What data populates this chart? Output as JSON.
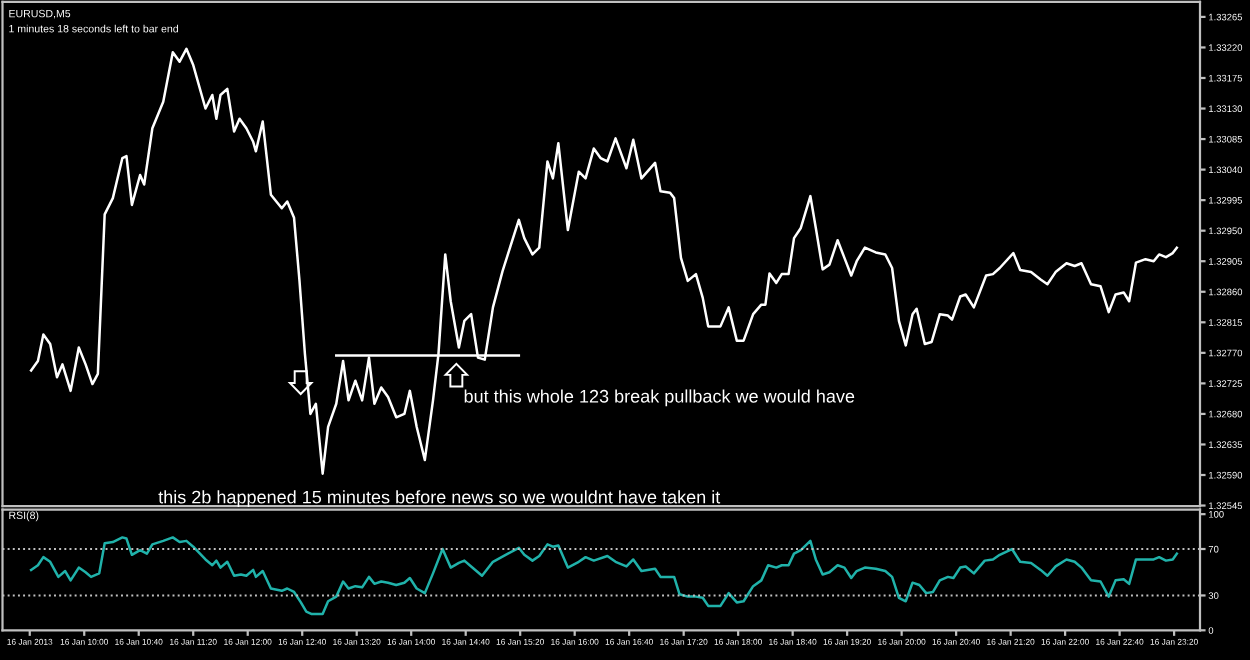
{
  "chart_data": [
    {
      "type": "line",
      "title": "EURUSD,M5",
      "subtitle": "1 minutes 18 seconds left to bar end",
      "annotations": [
        "but this whole 123 break pullback we would have",
        "this 2b happened 15 minutes before news so we wouldnt have taken it"
      ],
      "xlim": [
        "2013-01-16T09:00",
        "2013-01-16T23:39"
      ],
      "ylim": [
        1.32544,
        1.33287
      ],
      "yticks": [
        1.33265,
        {
          "value": 1.3322,
          "label": "1.33220"
        },
        1.33175,
        {
          "value": 1.3313,
          "label": "1.33130"
        },
        1.33085,
        {
          "value": 1.3304,
          "label": "1.33040"
        },
        1.32995,
        {
          "value": 1.3295,
          "label": "1.32950"
        },
        1.32905,
        {
          "value": 1.3286,
          "label": "1.32860"
        },
        1.32815,
        {
          "value": 1.3277,
          "label": "1.32770"
        },
        1.32725,
        {
          "value": 1.3268,
          "label": "1.32680"
        },
        1.32635,
        {
          "value": 1.3259,
          "label": "1.32590"
        },
        1.32545
      ],
      "tick_labels": "y",
      "grid": false,
      "series": [
        {
          "color": "#ffffff",
          "x": [
            "2013-01-16T09:21",
            "2013-01-16T09:26",
            "2013-01-16T09:30",
            "2013-01-16T09:35",
            "2013-01-16T09:40",
            "2013-01-16T09:44",
            "2013-01-16T09:50",
            "2013-01-16T09:56",
            "2013-01-16T10:01",
            "2013-01-16T10:06",
            "2013-01-16T10:10",
            "2013-01-16T10:15",
            "2013-01-16T10:21",
            "2013-01-16T10:28",
            "2013-01-16T10:31",
            "2013-01-16T10:35",
            "2013-01-16T10:41",
            "2013-01-16T10:44",
            "2013-01-16T10:50",
            "2013-01-16T10:58",
            "2013-01-16T11:05",
            "2013-01-16T11:10",
            "2013-01-16T11:15",
            "2013-01-16T11:20",
            "2013-01-16T11:29",
            "2013-01-16T11:34",
            "2013-01-16T11:37",
            "2013-01-16T11:40",
            "2013-01-16T11:45",
            "2013-01-16T11:50",
            "2013-01-16T11:54",
            "2013-01-16T11:59",
            "2013-01-16T12:04",
            "2013-01-16T12:06",
            "2013-01-16T12:11",
            "2013-01-16T12:17",
            "2013-01-16T12:25",
            "2013-01-16T12:29",
            "2013-01-16T12:34",
            "2013-01-16T12:38",
            "2013-01-16T12:42",
            "2013-01-16T12:46",
            "2013-01-16T12:50",
            "2013-01-16T12:55",
            "2013-01-16T12:59",
            "2013-01-16T13:05",
            "2013-01-16T13:10",
            "2013-01-16T13:14",
            "2013-01-16T13:19",
            "2013-01-16T13:24",
            "2013-01-16T13:29",
            "2013-01-16T13:33",
            "2013-01-16T13:38",
            "2013-01-16T13:43",
            "2013-01-16T13:49",
            "2013-01-16T13:55",
            "2013-01-16T13:59",
            "2013-01-16T14:04",
            "2013-01-16T14:10",
            "2013-01-16T14:16",
            "2013-01-16T14:20",
            "2013-01-16T14:25",
            "2013-01-16T14:29",
            "2013-01-16T14:35",
            "2013-01-16T14:39",
            "2013-01-16T14:44",
            "2013-01-16T14:49",
            "2013-01-16T14:54",
            "2013-01-16T15:00",
            "2013-01-16T15:07",
            "2013-01-16T15:19",
            "2013-01-16T15:23",
            "2013-01-16T15:29",
            "2013-01-16T15:34",
            "2013-01-16T15:40",
            "2013-01-16T15:44",
            "2013-01-16T15:48",
            "2013-01-16T15:55",
            "2013-01-16T16:03",
            "2013-01-16T16:08",
            "2013-01-16T16:14",
            "2013-01-16T16:19",
            "2013-01-16T16:24",
            "2013-01-16T16:30",
            "2013-01-16T16:38",
            "2013-01-16T16:43",
            "2013-01-16T16:49",
            "2013-01-16T16:59",
            "2013-01-16T17:03",
            "2013-01-16T17:10",
            "2013-01-16T17:13",
            "2013-01-16T17:18",
            "2013-01-16T17:23",
            "2013-01-16T17:29",
            "2013-01-16T17:34",
            "2013-01-16T17:38",
            "2013-01-16T17:47",
            "2013-01-16T17:53",
            "2013-01-16T17:59",
            "2013-01-16T18:04",
            "2013-01-16T18:11",
            "2013-01-16T18:17",
            "2013-01-16T18:20",
            "2013-01-16T18:23",
            "2013-01-16T18:28",
            "2013-01-16T18:32",
            "2013-01-16T18:37",
            "2013-01-16T18:41",
            "2013-01-16T18:46",
            "2013-01-16T18:53",
            "2013-01-16T18:57",
            "2013-01-16T19:02",
            "2013-01-16T19:07",
            "2013-01-16T19:13",
            "2013-01-16T19:18",
            "2013-01-16T19:23",
            "2013-01-16T19:27",
            "2013-01-16T19:33",
            "2013-01-16T19:41",
            "2013-01-16T19:48",
            "2013-01-16T19:53",
            "2013-01-16T19:58",
            "2013-01-16T20:03",
            "2013-01-16T20:08",
            "2013-01-16T20:11",
            "2013-01-16T20:17",
            "2013-01-16T20:22",
            "2013-01-16T20:28",
            "2013-01-16T20:34",
            "2013-01-16T20:37",
            "2013-01-16T20:43",
            "2013-01-16T20:47",
            "2013-01-16T20:53",
            "2013-01-16T21:02",
            "2013-01-16T21:07",
            "2013-01-16T21:12",
            "2013-01-16T21:22",
            "2013-01-16T21:27",
            "2013-01-16T21:35",
            "2013-01-16T21:42",
            "2013-01-16T21:47",
            "2013-01-16T21:53",
            "2013-01-16T22:01",
            "2013-01-16T22:07",
            "2013-01-16T22:12",
            "2013-01-16T22:19",
            "2013-01-16T22:26",
            "2013-01-16T22:32",
            "2013-01-16T22:37",
            "2013-01-16T22:43",
            "2013-01-16T22:47",
            "2013-01-16T22:52",
            "2013-01-16T22:59",
            "2013-01-16T23:05",
            "2013-01-16T23:09",
            "2013-01-16T23:14",
            "2013-01-16T23:19",
            "2013-01-16T23:22"
          ],
          "values": [
            1.32744,
            1.32758,
            1.32797,
            1.32783,
            1.32734,
            1.32753,
            1.32714,
            1.32778,
            1.32753,
            1.32724,
            1.32739,
            1.32974,
            1.32998,
            1.33057,
            1.3306,
            1.32988,
            1.33032,
            1.33018,
            1.33101,
            1.3314,
            1.33213,
            1.33199,
            1.33218,
            1.33194,
            1.3313,
            1.3315,
            1.33115,
            1.3315,
            1.33159,
            1.33096,
            1.33115,
            1.33101,
            1.33081,
            1.33067,
            1.33111,
            1.33003,
            1.32983,
            1.32993,
            1.32969,
            1.32876,
            1.32768,
            1.3268,
            1.32695,
            1.32592,
            1.32661,
            1.32695,
            1.32758,
            1.327,
            1.32729,
            1.327,
            1.32763,
            1.32695,
            1.32719,
            1.32705,
            1.32675,
            1.3268,
            1.32714,
            1.32661,
            1.32612,
            1.327,
            1.32768,
            1.32915,
            1.32846,
            1.32778,
            1.32817,
            1.32827,
            1.32763,
            1.3276,
            1.32837,
            1.3289,
            1.32966,
            1.32939,
            1.32915,
            1.32925,
            1.33052,
            1.33027,
            1.33079,
            1.32951,
            1.33037,
            1.33027,
            1.33071,
            1.33057,
            1.33052,
            1.33086,
            1.33042,
            1.33084,
            1.33027,
            1.3305,
            1.33008,
            1.33006,
            1.32998,
            1.3291,
            1.32876,
            1.32886,
            1.32851,
            1.32809,
            1.32809,
            1.32837,
            1.32788,
            1.32788,
            1.32827,
            1.32841,
            1.32841,
            1.32887,
            1.32873,
            1.32886,
            1.32886,
            1.32939,
            1.32954,
            1.33001,
            1.32954,
            1.32893,
            1.329,
            1.32936,
            1.3291,
            1.32884,
            1.32905,
            1.32925,
            1.32918,
            1.32915,
            1.32895,
            1.32817,
            1.32781,
            1.32827,
            1.32835,
            1.32783,
            1.32786,
            1.32827,
            1.32825,
            1.32819,
            1.32853,
            1.32856,
            1.32837,
            1.32884,
            1.32886,
            1.32895,
            1.32917,
            1.32892,
            1.32889,
            1.32878,
            1.32871,
            1.32889,
            1.32902,
            1.32898,
            1.32902,
            1.32871,
            1.32868,
            1.3283,
            1.32856,
            1.32859,
            1.32846,
            1.32903,
            1.32908,
            1.32905,
            1.32915,
            1.32911,
            1.32917,
            1.32925
          ]
        },
        {
          "type": "line",
          "color": "#ffffff",
          "x": [
            "2013-01-16T13:05",
            "2013-01-16T15:19"
          ],
          "values": [
            1.32766,
            1.32766
          ]
        }
      ]
    },
    {
      "type": "line",
      "title": "RSI(8)",
      "xlim": [
        "2013-01-16T09:00",
        "2013-01-16T23:39"
      ],
      "ylim": [
        0,
        104
      ],
      "yticks": [
        0,
        30,
        70,
        100
      ],
      "grid": false,
      "xticks": [
        {
          "value": "2013-01-16T09:20",
          "label": "16 Jan 2013"
        },
        {
          "value": "2013-01-16T10:00",
          "label": "16 Jan 10:00"
        },
        {
          "value": "2013-01-16T10:40",
          "label": "16 Jan 10:40"
        },
        {
          "value": "2013-01-16T11:20",
          "label": "16 Jan 11:20"
        },
        {
          "value": "2013-01-16T12:00",
          "label": "16 Jan 12:00"
        },
        {
          "value": "2013-01-16T12:40",
          "label": "16 Jan 12:40"
        },
        {
          "value": "2013-01-16T13:20",
          "label": "16 Jan 13:20"
        },
        {
          "value": "2013-01-16T14:00",
          "label": "16 Jan 14:00"
        },
        {
          "value": "2013-01-16T14:40",
          "label": "16 Jan 14:40"
        },
        {
          "value": "2013-01-16T15:20",
          "label": "16 Jan 15:20"
        },
        {
          "value": "2013-01-16T16:00",
          "label": "16 Jan 16:00"
        },
        {
          "value": "2013-01-16T16:40",
          "label": "16 Jan 16:40"
        },
        {
          "value": "2013-01-16T17:20",
          "label": "16 Jan 17:20"
        },
        {
          "value": "2013-01-16T18:00",
          "label": "16 Jan 18:00"
        },
        {
          "value": "2013-01-16T18:40",
          "label": "16 Jan 18:40"
        },
        {
          "value": "2013-01-16T19:20",
          "label": "16 Jan 19:20"
        },
        {
          "value": "2013-01-16T20:00",
          "label": "16 Jan 20:00"
        },
        {
          "value": "2013-01-16T20:40",
          "label": "16 Jan 20:40"
        },
        {
          "value": "2013-01-16T21:20",
          "label": "16 Jan 21:20"
        },
        {
          "value": "2013-01-16T22:00",
          "label": "16 Jan 22:00"
        },
        {
          "value": "2013-01-16T22:40",
          "label": "16 Jan 22:40"
        },
        {
          "value": "2013-01-16T23:20",
          "label": "16 Jan 23:20"
        }
      ],
      "ref_lines": [
        {
          "axis": "y",
          "value": 70,
          "color": "#c0c0c0",
          "line_style": "dotted"
        },
        {
          "axis": "y",
          "value": 30,
          "color": "#c0c0c0",
          "line_style": "dotted"
        }
      ],
      "series": [
        {
          "color": "#20b2aa",
          "x": [
            "2013-01-16T09:21",
            "2013-01-16T09:26",
            "2013-01-16T09:30",
            "2013-01-16T09:35",
            "2013-01-16T09:41",
            "2013-01-16T09:46",
            "2013-01-16T09:50",
            "2013-01-16T09:56",
            "2013-01-16T10:01",
            "2013-01-16T10:05",
            "2013-01-16T10:11",
            "2013-01-16T10:15",
            "2013-01-16T10:21",
            "2013-01-16T10:28",
            "2013-01-16T10:31",
            "2013-01-16T10:35",
            "2013-01-16T10:41",
            "2013-01-16T10:46",
            "2013-01-16T10:50",
            "2013-01-16T10:58",
            "2013-01-16T11:05",
            "2013-01-16T11:10",
            "2013-01-16T11:15",
            "2013-01-16T11:20",
            "2013-01-16T11:29",
            "2013-01-16T11:34",
            "2013-01-16T11:37",
            "2013-01-16T11:40",
            "2013-01-16T11:45",
            "2013-01-16T11:50",
            "2013-01-16T11:55",
            "2013-01-16T11:59",
            "2013-01-16T12:04",
            "2013-01-16T12:06",
            "2013-01-16T12:11",
            "2013-01-16T12:17",
            "2013-01-16T12:25",
            "2013-01-16T12:29",
            "2013-01-16T12:34",
            "2013-01-16T12:39",
            "2013-01-16T12:43",
            "2013-01-16T12:47",
            "2013-01-16T12:55",
            "2013-01-16T12:59",
            "2013-01-16T13:05",
            "2013-01-16T13:10",
            "2013-01-16T13:14",
            "2013-01-16T13:19",
            "2013-01-16T13:24",
            "2013-01-16T13:29",
            "2013-01-16T13:33",
            "2013-01-16T13:38",
            "2013-01-16T13:43",
            "2013-01-16T13:49",
            "2013-01-16T13:55",
            "2013-01-16T13:59",
            "2013-01-16T14:04",
            "2013-01-16T14:10",
            "2013-01-16T14:16",
            "2013-01-16T14:23",
            "2013-01-16T14:29",
            "2013-01-16T14:35",
            "2013-01-16T14:39",
            "2013-01-16T14:44",
            "2013-01-16T14:52",
            "2013-01-16T15:00",
            "2013-01-16T15:11",
            "2013-01-16T15:19",
            "2013-01-16T15:23",
            "2013-01-16T15:29",
            "2013-01-16T15:34",
            "2013-01-16T15:40",
            "2013-01-16T15:44",
            "2013-01-16T15:48",
            "2013-01-16T15:55",
            "2013-01-16T16:03",
            "2013-01-16T16:08",
            "2013-01-16T16:14",
            "2013-01-16T16:24",
            "2013-01-16T16:30",
            "2013-01-16T16:38",
            "2013-01-16T16:43",
            "2013-01-16T16:49",
            "2013-01-16T16:59",
            "2013-01-16T17:03",
            "2013-01-16T17:13",
            "2013-01-16T17:17",
            "2013-01-16T17:23",
            "2013-01-16T17:29",
            "2013-01-16T17:34",
            "2013-01-16T17:38",
            "2013-01-16T17:47",
            "2013-01-16T17:53",
            "2013-01-16T17:59",
            "2013-01-16T18:04",
            "2013-01-16T18:11",
            "2013-01-16T18:17",
            "2013-01-16T18:22",
            "2013-01-16T18:28",
            "2013-01-16T18:32",
            "2013-01-16T18:37",
            "2013-01-16T18:41",
            "2013-01-16T18:46",
            "2013-01-16T18:53",
            "2013-01-16T18:57",
            "2013-01-16T19:02",
            "2013-01-16T19:07",
            "2013-01-16T19:13",
            "2013-01-16T19:18",
            "2013-01-16T19:23",
            "2013-01-16T19:27",
            "2013-01-16T19:33",
            "2013-01-16T19:41",
            "2013-01-16T19:48",
            "2013-01-16T19:53",
            "2013-01-16T19:58",
            "2013-01-16T20:03",
            "2013-01-16T20:08",
            "2013-01-16T20:13",
            "2013-01-16T20:18",
            "2013-01-16T20:23",
            "2013-01-16T20:28",
            "2013-01-16T20:34",
            "2013-01-16T20:38",
            "2013-01-16T20:43",
            "2013-01-16T20:47",
            "2013-01-16T20:53",
            "2013-01-16T21:01",
            "2013-01-16T21:07",
            "2013-01-16T21:12",
            "2013-01-16T21:21",
            "2013-01-16T21:27",
            "2013-01-16T21:35",
            "2013-01-16T21:42",
            "2013-01-16T21:47",
            "2013-01-16T21:53",
            "2013-01-16T22:01",
            "2013-01-16T22:07",
            "2013-01-16T22:12",
            "2013-01-16T22:19",
            "2013-01-16T22:26",
            "2013-01-16T22:32",
            "2013-01-16T22:37",
            "2013-01-16T22:43",
            "2013-01-16T22:47",
            "2013-01-16T22:52",
            "2013-01-16T22:59",
            "2013-01-16T23:05",
            "2013-01-16T23:09",
            "2013-01-16T23:14",
            "2013-01-16T23:19",
            "2013-01-16T23:22"
          ],
          "values": [
            52,
            56,
            63,
            59,
            46,
            51,
            43,
            54,
            50,
            46,
            49,
            75,
            76,
            80,
            79,
            65,
            69,
            66,
            74,
            77,
            80,
            76,
            77,
            72,
            61,
            56,
            60,
            54,
            59,
            47,
            48,
            47,
            52,
            46,
            51,
            36,
            34,
            36,
            33,
            24,
            16,
            14,
            14,
            25,
            29,
            42,
            36,
            38,
            37,
            46,
            40,
            42,
            41,
            39,
            41,
            45,
            36,
            32,
            49,
            70,
            54,
            58,
            60,
            55,
            47,
            59,
            66,
            71,
            65,
            60,
            64,
            74,
            72,
            73,
            54,
            59,
            63,
            60,
            64,
            59,
            55,
            61,
            51,
            53,
            46,
            46,
            31,
            29,
            29,
            28,
            21,
            21,
            32,
            24,
            25,
            38,
            43,
            56,
            54,
            56,
            56,
            66,
            69,
            77,
            61,
            48,
            50,
            56,
            54,
            45,
            51,
            54,
            53,
            51,
            46,
            28,
            25,
            41,
            39,
            32,
            33,
            43,
            46,
            45,
            54,
            55,
            49,
            60,
            61,
            65,
            70,
            59,
            58,
            52,
            47,
            55,
            61,
            59,
            54,
            43,
            42,
            29,
            43,
            44,
            40,
            61,
            61,
            61,
            63,
            60,
            61,
            66
          ]
        }
      ]
    }
  ]
}
